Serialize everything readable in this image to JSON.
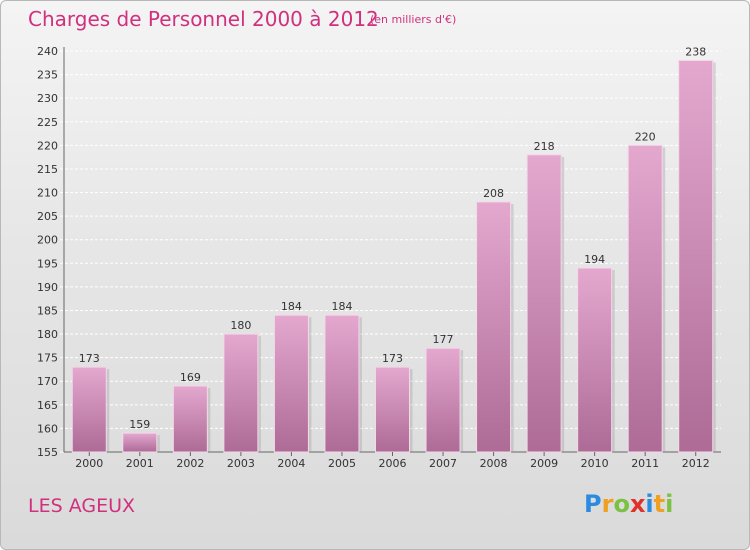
{
  "title": "Charges de Personnel 2000 à 2012",
  "subtitle": "(en milliers d'€)",
  "place": "LES AGEUX",
  "logo": {
    "letters": [
      "P",
      "r",
      "o",
      "x",
      "i",
      "t",
      "i"
    ],
    "colors": [
      "#2a8be0",
      "#f0a020",
      "#7bc242",
      "#e0302a",
      "#2a8be0",
      "#f0a020",
      "#7bc242"
    ]
  },
  "colors": {
    "accent": "#d0307e",
    "bar_light": "#e4a8cf",
    "bar_dark": "#ad6b96"
  },
  "chart_data": {
    "type": "bar",
    "categories": [
      "2000",
      "2001",
      "2002",
      "2003",
      "2004",
      "2005",
      "2006",
      "2007",
      "2008",
      "2009",
      "2010",
      "2011",
      "2012"
    ],
    "values": [
      173,
      159,
      169,
      180,
      184,
      184,
      173,
      177,
      208,
      218,
      194,
      220,
      238
    ],
    "ylim": [
      155,
      240
    ],
    "yticks": [
      155,
      160,
      165,
      170,
      175,
      180,
      185,
      190,
      195,
      200,
      205,
      210,
      215,
      220,
      225,
      230,
      235,
      240
    ],
    "grid": true
  }
}
